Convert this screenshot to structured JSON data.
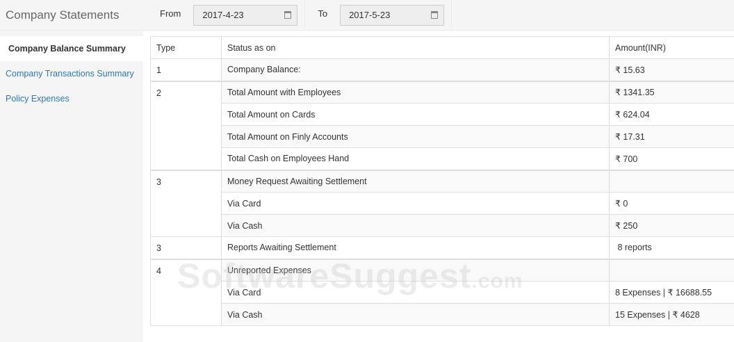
{
  "header": {
    "title": "Company Statements",
    "from_label": "From",
    "from_value": "2017-4-23",
    "to_label": "To",
    "to_value": "2017-5-23"
  },
  "sidebar": {
    "items": [
      {
        "label": "Company Balance Summary"
      },
      {
        "label": "Company Transactions Summary"
      },
      {
        "label": "Policy Expenses"
      }
    ]
  },
  "table": {
    "headers": [
      "Type",
      "Status as on",
      "Amount(INR)"
    ],
    "rows": [
      {
        "type": "1",
        "status": "Company Balance:",
        "amount": "₹ 15.63"
      },
      {
        "type": "2",
        "status": "Total Amount with Employees",
        "amount": "₹ 1341.35"
      },
      {
        "status": "Total Amount on Cards",
        "amount": "₹ 624.04"
      },
      {
        "status": "Total Amount on Finly Accounts",
        "amount": "₹ 17.31"
      },
      {
        "status": "Total Cash on Employees Hand",
        "amount": "₹ 700"
      },
      {
        "type": "3",
        "status": "Money Request Awaiting Settlement",
        "amount": ""
      },
      {
        "status": "Via Card",
        "amount": "₹ 0"
      },
      {
        "status": "Via Cash",
        "amount": "₹ 250"
      },
      {
        "type": "3",
        "status": "Reports Awaiting Settlement",
        "amount": " 8 reports"
      },
      {
        "type": "4",
        "status": "Unreported Expenses",
        "amount": ""
      },
      {
        "status": "Via Card",
        "amount": "8 Expenses | ₹ 16688.55"
      },
      {
        "status": "Via Cash",
        "amount": "15 Expenses | ₹ 4628"
      }
    ]
  },
  "watermark": {
    "main": "SoftwareSuggest",
    "suffix": ".com"
  }
}
